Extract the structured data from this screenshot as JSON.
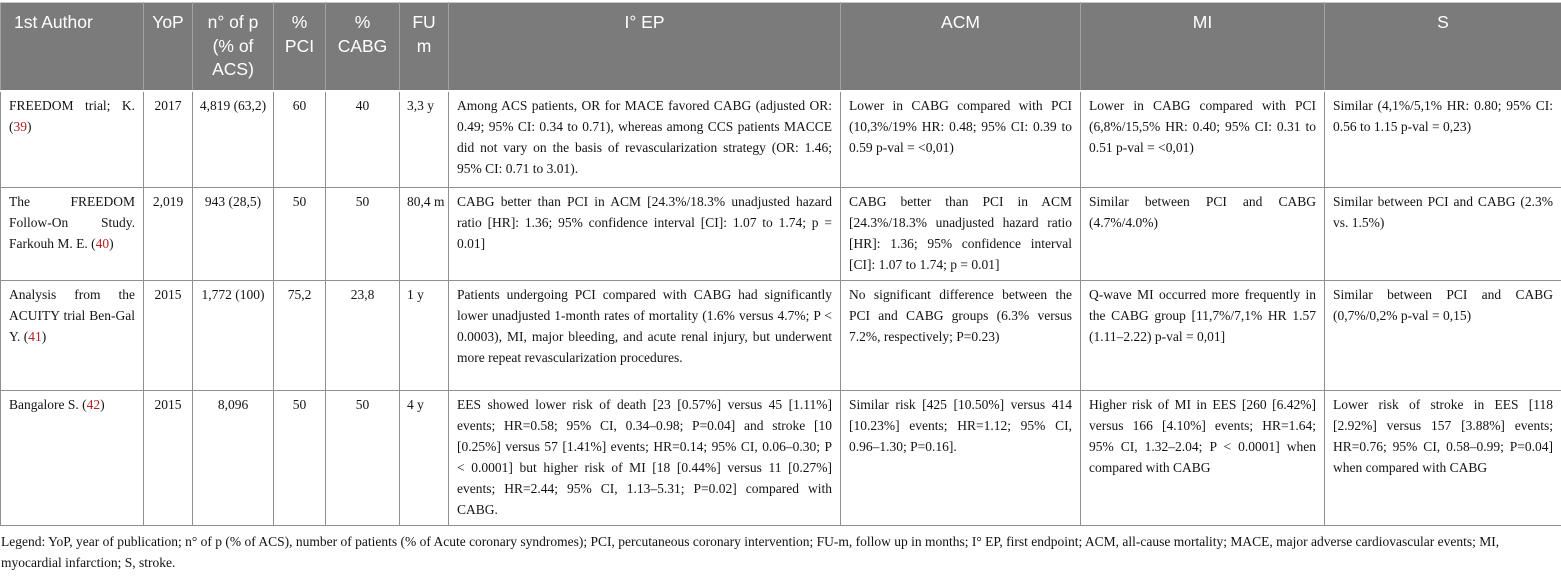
{
  "colors": {
    "header_bg": "#7b7b7b",
    "header_text": "#ffffff",
    "reference_red": "#b42025",
    "cell_border": "#8f8f8f"
  },
  "table": {
    "columns": [
      {
        "label": "1st Author"
      },
      {
        "label": "YoP"
      },
      {
        "label": "n° of p (% of ACS)"
      },
      {
        "label": "% PCI"
      },
      {
        "label": "% CABG"
      },
      {
        "label": "FU m"
      },
      {
        "label": "I° EP"
      },
      {
        "label": "ACM"
      },
      {
        "label": "MI"
      },
      {
        "label": "S"
      }
    ],
    "rows": [
      {
        "author": [
          {
            "t": "FREEDOM trial; K. ("
          },
          {
            "t": "39",
            "red": true
          },
          {
            "t": ")"
          }
        ],
        "yop": "2017",
        "n": "4,819 (63,2)",
        "pci": "60",
        "cabg": "40",
        "fu": "3,3 y",
        "ep": "Among ACS patients, OR for MACE favored CABG (adjusted OR: 0.49; 95% CI: 0.34 to 0.71), whereas among CCS patients MACCE did not vary on the basis of revascularization strategy (OR: 1.46; 95% CI: 0.71 to 3.01).",
        "acm": "Lower in CABG compared with PCI (10,3%/19% HR: 0.48; 95% CI: 0.39 to 0.59 p-val = <0,01)",
        "mi": "Lower in CABG compared with PCI (6,8%/15,5% HR: 0.40; 95% CI: 0.31 to 0.51 p-val = <0,01)",
        "s": "Similar (4,1%/5,1% HR: 0.80; 95% CI: 0.56 to 1.15 p-val = 0,23)"
      },
      {
        "author": [
          {
            "t": "The FREEDOM Follow-On Study. Farkouh M. E. ("
          },
          {
            "t": "40",
            "red": true
          },
          {
            "t": ")"
          }
        ],
        "yop": "2,019",
        "n": "943 (28,5)",
        "pci": "50",
        "cabg": "50",
        "fu": "80,4 m",
        "ep": "CABG better than PCI in ACM [24.3%/18.3% unadjusted hazard ratio [HR]: 1.36; 95% confidence interval [CI]: 1.07 to 1.74; p = 0.01]",
        "acm": "CABG better than PCI in ACM [24.3%/18.3% unadjusted hazard ratio [HR]: 1.36; 95% confidence interval [CI]: 1.07 to 1.74; p = 0.01]",
        "mi": "Similar between PCI and CABG (4.7%/4.0%)",
        "s": "Similar between PCI and CABG (2.3% vs. 1.5%)"
      },
      {
        "author": [
          {
            "t": "Analysis from the ACUITY trial Ben-Gal Y. ("
          },
          {
            "t": "41",
            "red": true
          },
          {
            "t": ")"
          }
        ],
        "yop": "2015",
        "n": "1,772 (100)",
        "pci": "75,2",
        "cabg": "23,8",
        "fu": "1 y",
        "ep": "Patients undergoing PCI compared with CABG had significantly lower unadjusted 1-month rates of mortality (1.6% versus 4.7%; P < 0.0003), MI, major bleeding, and acute renal injury, but underwent more repeat revascularization procedures.",
        "acm": "No significant difference between the PCI and CABG groups (6.3% versus 7.2%, respectively; P=0.23)",
        "mi": "Q-wave MI occurred more frequently in the CABG group [11,7%/7,1% HR 1.57 (1.11–2.22) p-val = 0,01]",
        "s": "Similar between PCI and CABG (0,7%/0,2% p-val = 0,15)"
      },
      {
        "author": [
          {
            "t": "Bangalore S. ("
          },
          {
            "t": "42",
            "red": true
          },
          {
            "t": ")"
          }
        ],
        "yop": "2015",
        "n": "8,096",
        "pci": "50",
        "cabg": "50",
        "fu": "4 y",
        "ep": "EES showed lower risk of death [23 [0.57%] versus 45 [1.11%] events; HR=0.58; 95% CI, 0.34–0.98; P=0.04] and stroke [10 [0.25%] versus 57 [1.41%] events; HR=0.14; 95% CI, 0.06–0.30; P < 0.0001] but higher risk of MI [18 [0.44%] versus 11 [0.27%] events; HR=2.44; 95% CI, 1.13–5.31; P=0.02] compared with CABG.",
        "acm": "Similar risk [425 [10.50%] versus 414 [10.23%] events; HR=1.12; 95% CI, 0.96–1.30; P=0.16].",
        "mi": "Higher risk of MI in EES [260 [6.42%] versus 166 [4.10%] events; HR=1.64; 95% CI, 1.32–2.04; P < 0.0001] when compared with CABG",
        "s": "Lower risk of stroke in EES [118 [2.92%] versus 157 [3.88%] events; HR=0.76; 95% CI, 0.58–0.99; P=0.04] when compared with CABG"
      }
    ]
  },
  "legend": "Legend: YoP, year of publication; n° of p (% of ACS), number of patients (% of Acute coronary syndromes); PCI, percutaneous coronary intervention; FU-m, follow up in months; I° EP, first endpoint; ACM, all-cause mortality; MACE, major adverse cardiovascular events; MI, myocardial infarction; S, stroke."
}
